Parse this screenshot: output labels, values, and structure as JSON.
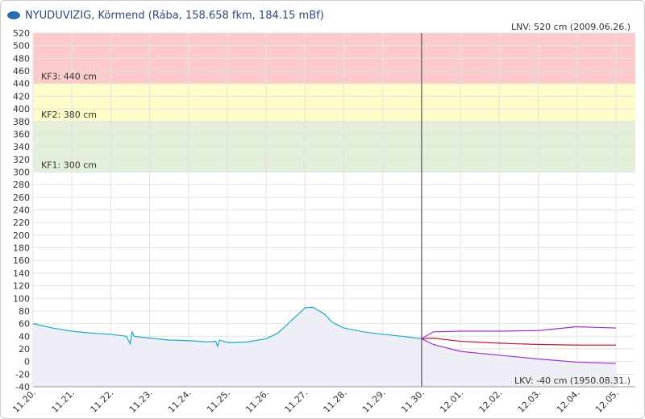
{
  "chart_data": {
    "type": "line",
    "title": "NYUDUVIZIG, Körmend (Rába, 158.658 fkm, 184.15 mBf)",
    "top_note": "LNV: 520 cm (2009.06.26.)",
    "bottom_note": "LKV: -40 cm (1950.08.31.)",
    "now": 10,
    "xlim": [
      0,
      15.5
    ],
    "ylim": [
      -40,
      520
    ],
    "xticks": [
      {
        "value": 0,
        "label": "11.20."
      },
      {
        "value": 1,
        "label": "11.21."
      },
      {
        "value": 2,
        "label": "11.22."
      },
      {
        "value": 3,
        "label": "11.23."
      },
      {
        "value": 4,
        "label": "11.24."
      },
      {
        "value": 5,
        "label": "11.25."
      },
      {
        "value": 6,
        "label": "11.26."
      },
      {
        "value": 7,
        "label": "11.27."
      },
      {
        "value": 8,
        "label": "11.28."
      },
      {
        "value": 9,
        "label": "11.29."
      },
      {
        "value": 10,
        "label": "11.30."
      },
      {
        "value": 11,
        "label": "12.01."
      },
      {
        "value": 12,
        "label": "12.02."
      },
      {
        "value": 13,
        "label": "12.03."
      },
      {
        "value": 14,
        "label": "12.04."
      },
      {
        "value": 15,
        "label": "12.05."
      }
    ],
    "yticks": [
      -40,
      -20,
      0,
      20,
      40,
      60,
      80,
      100,
      120,
      140,
      160,
      180,
      200,
      220,
      240,
      260,
      280,
      300,
      320,
      340,
      360,
      380,
      400,
      420,
      440,
      460,
      480,
      500,
      520
    ],
    "grid": true,
    "bands": [
      {
        "label": "KF1: 300 cm",
        "from": 300,
        "to": 380,
        "color": "#e3efd8"
      },
      {
        "label": "KF2: 380 cm",
        "from": 380,
        "to": 440,
        "color": "#fdfdca"
      },
      {
        "label": "KF3: 440 cm",
        "from": 440,
        "to": 520,
        "color": "#fccaca"
      }
    ],
    "series": [
      {
        "color": "#19aac6",
        "fill": "#eeeff6",
        "x": [
          0,
          0.5,
          1,
          1.5,
          2,
          2.4,
          2.5,
          2.55,
          2.6,
          3,
          3.5,
          4,
          4.5,
          4.7,
          4.75,
          4.8,
          5,
          5.5,
          6,
          6.3,
          6.6,
          7,
          7.2,
          7.5,
          7.7,
          8,
          8.5,
          9,
          9.5,
          10
        ],
        "values": [
          60,
          53,
          48,
          45,
          43,
          40,
          28,
          47,
          40,
          37,
          34,
          33,
          31,
          32,
          24,
          34,
          30,
          31,
          36,
          45,
          62,
          85,
          86,
          75,
          62,
          53,
          47,
          43,
          40,
          36
        ]
      },
      {
        "color": "#c0102a",
        "x": [
          10,
          10.3,
          11,
          12,
          13,
          14,
          15
        ],
        "values": [
          36,
          37,
          32,
          29,
          27,
          26,
          26
        ]
      },
      {
        "color": "#9b30d0",
        "x": [
          10,
          10.3,
          11,
          12,
          13,
          13.5,
          14,
          14.5,
          15
        ],
        "values": [
          36,
          47,
          48,
          48,
          49,
          52,
          55,
          54,
          53
        ]
      },
      {
        "color": "#9b30d0",
        "fill": "#eeeff6",
        "x": [
          10,
          10.3,
          11,
          12,
          13,
          14,
          15
        ],
        "values": [
          36,
          27,
          16,
          10,
          4,
          -1,
          -3
        ]
      }
    ]
  }
}
